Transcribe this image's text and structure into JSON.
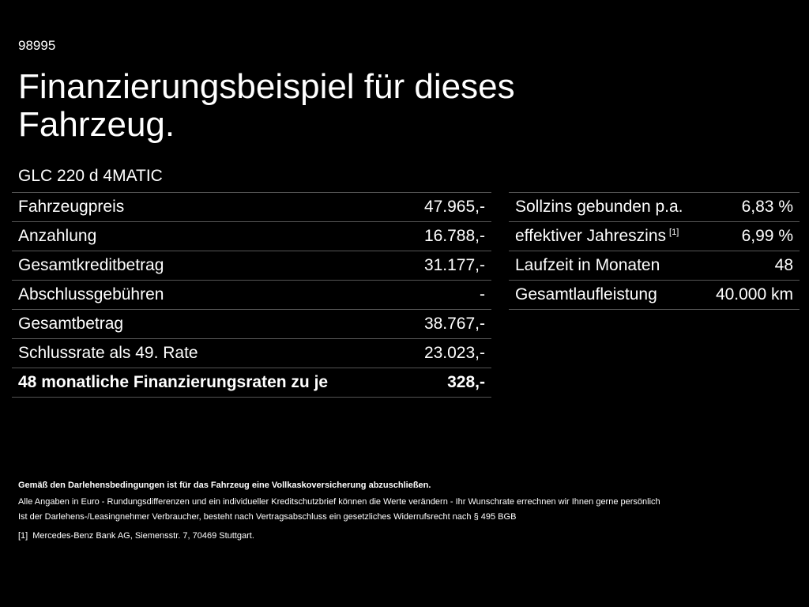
{
  "header": {
    "id": "98995",
    "title": "Finanzierungsbeispiel für dieses Fahrzeug.",
    "model": "GLC 220 d 4MATIC"
  },
  "left_table": {
    "rows": [
      [
        "Fahrzeugpreis",
        "47.965,-"
      ],
      [
        "Anzahlung",
        "16.788,-"
      ],
      [
        "Gesamtkreditbetrag",
        "31.177,-"
      ],
      [
        "Abschlussgebühren",
        "-"
      ],
      [
        "Gesamtbetrag",
        "38.767,-"
      ],
      [
        "Schlussrate als 49. Rate",
        "23.023,-"
      ],
      [
        "48 monatliche Finanzierungsraten zu je",
        "328,-"
      ]
    ]
  },
  "right_table": {
    "rows": [
      [
        "Sollzins gebunden p.a.",
        "6,83 %"
      ],
      [
        "effektiver Jahreszins",
        "6,99 %"
      ],
      [
        "Laufzeit in Monaten",
        "48"
      ],
      [
        "Gesamtlaufleistung",
        "40.000 km"
      ]
    ],
    "note_ref": "[1]"
  },
  "footer": {
    "insurance": "Gemäß den Darlehensbedingungen ist für das Fahrzeug eine Vollkaskoversicherung abzuschließen.",
    "lines": [
      "Alle Angaben in Euro - Rundungsdifferenzen und ein individueller Kreditschutzbrief können die Werte verändern - Ihr Wunschrate errechnen wir Ihnen gerne persönlich",
      "Ist der Darlehens-/Leasingnehmer Verbraucher, besteht nach Vertragsabschluss ein gesetzliches Widerrufsrecht nach § 495 BGB"
    ],
    "note_marker": "[1]",
    "note_text": "Mercedes-Benz Bank AG, Siemensstr. 7, 70469 Stuttgart."
  }
}
